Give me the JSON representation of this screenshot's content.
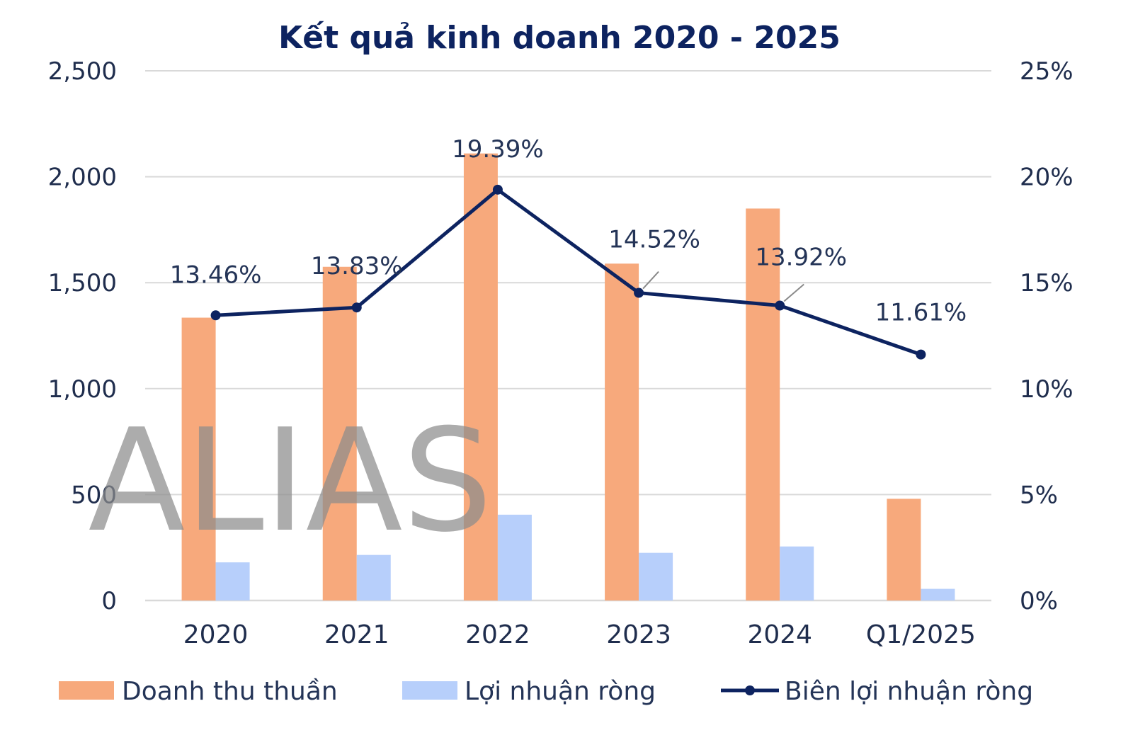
{
  "chart_data": {
    "type": "bar",
    "title": "Kết quả kinh doanh 2020 - 2025",
    "categories": [
      "2020",
      "2021",
      "2022",
      "2023",
      "2024",
      "Q1/2025"
    ],
    "series": [
      {
        "name": "Doanh thu thuần",
        "type": "bar",
        "axis": "left",
        "color": "#f7a97c",
        "values": [
          1335,
          1575,
          2110,
          1590,
          1850,
          480
        ]
      },
      {
        "name": "Lợi nhuận ròng",
        "type": "bar",
        "axis": "left",
        "color": "#b7cffb",
        "values": [
          180,
          215,
          405,
          225,
          255,
          55
        ]
      },
      {
        "name": "Biên lợi nhuận ròng",
        "type": "line",
        "axis": "right",
        "color": "#0d2360",
        "values": [
          13.46,
          13.83,
          19.39,
          14.52,
          13.92,
          11.61
        ],
        "labels": [
          "13.46%",
          "13.83%",
          "19.39%",
          "14.52%",
          "13.92%",
          "11.61%"
        ]
      }
    ],
    "y_left": {
      "ylim": [
        0,
        2500
      ],
      "ticks": [
        0,
        500,
        1000,
        1500,
        2000,
        2500
      ],
      "tick_labels": [
        "0",
        "500",
        "1,000",
        "1,500",
        "2,000",
        "2,500"
      ]
    },
    "y_right": {
      "ylim": [
        0,
        25
      ],
      "ticks": [
        0,
        5,
        10,
        15,
        20,
        25
      ],
      "tick_labels": [
        "0%",
        "5%",
        "10%",
        "15%",
        "20%",
        "25%"
      ]
    },
    "grid": true,
    "gridline_color": "#d9d9d9",
    "legend_position": "bottom",
    "watermark": "ALIAS"
  }
}
